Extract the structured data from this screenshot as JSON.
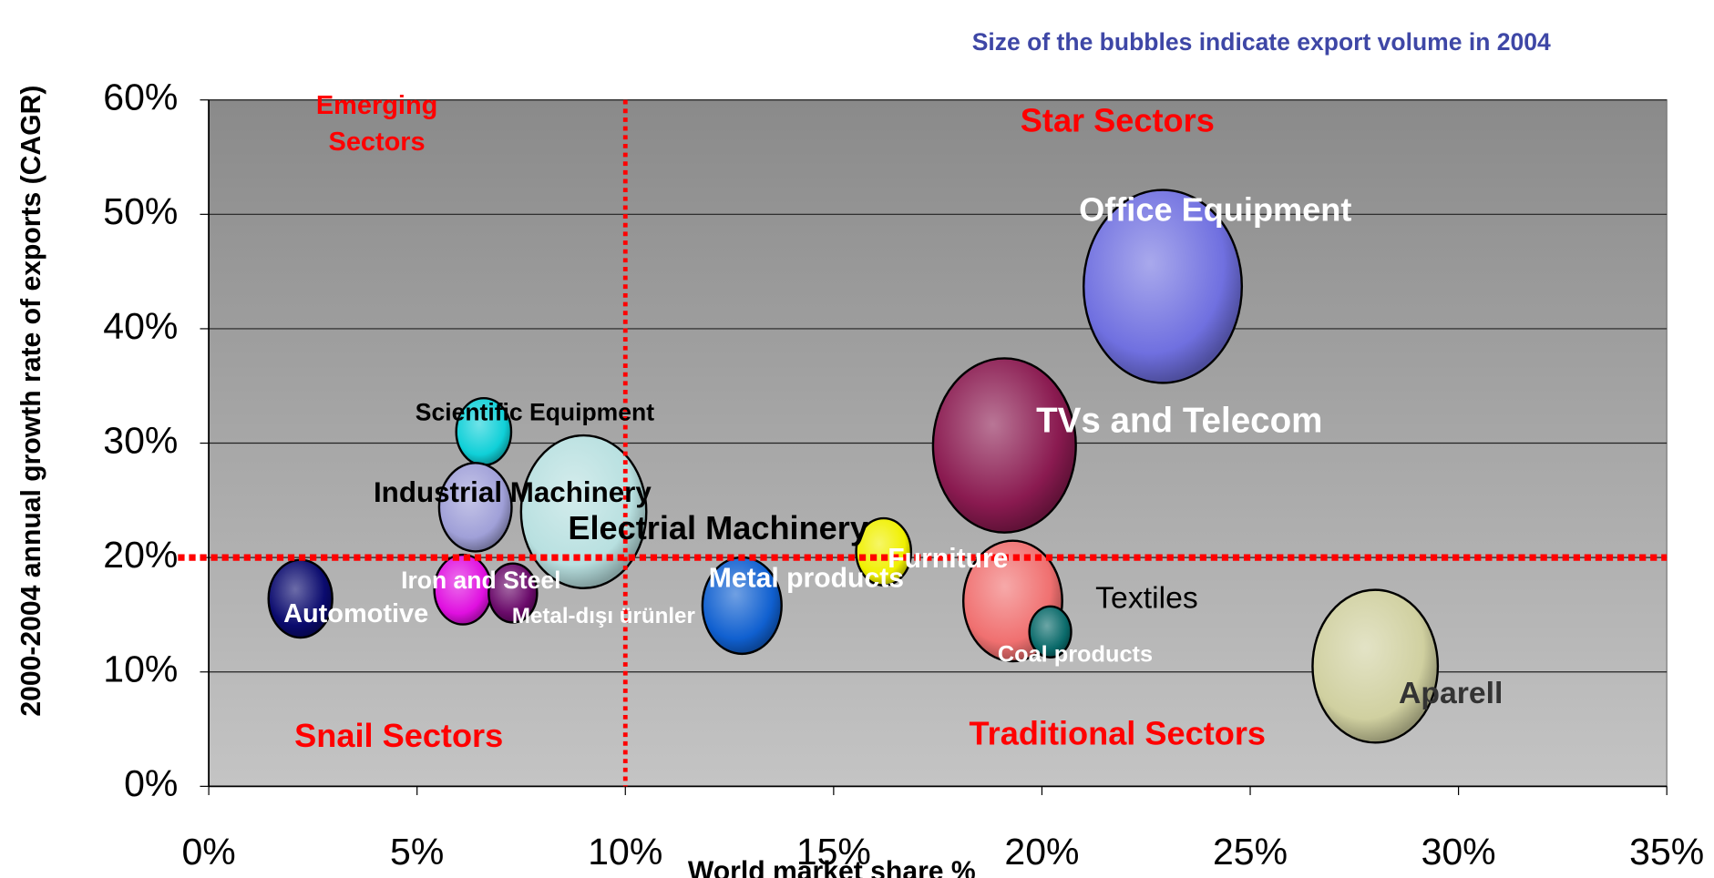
{
  "chart_data": {
    "type": "bubble",
    "subtitle": "Size of the bubbles indicate export volume in 2004",
    "xlabel": "World market share %",
    "ylabel": "2000-2004 annual growth rate of exports (CAGR)",
    "xlim": [
      0,
      35
    ],
    "xticks": [
      {
        "value": 0,
        "label": "0%"
      },
      {
        "value": 5,
        "label": "5%"
      },
      {
        "value": 10,
        "label": "10%"
      },
      {
        "value": 15,
        "label": "15%"
      },
      {
        "value": 20,
        "label": "20%"
      },
      {
        "value": 25,
        "label": "25%"
      },
      {
        "value": 30,
        "label": "30%"
      },
      {
        "value": 35,
        "label": "35%"
      }
    ],
    "ylim": [
      0,
      60
    ],
    "yticks": [
      {
        "value": 0,
        "label": "0%"
      },
      {
        "value": 10,
        "label": "10%"
      },
      {
        "value": 20,
        "label": "20%"
      },
      {
        "value": 30,
        "label": "30%"
      },
      {
        "value": 40,
        "label": "40%"
      },
      {
        "value": 50,
        "label": "50%"
      },
      {
        "value": 60,
        "label": "60%"
      }
    ],
    "grid": true,
    "reference_lines": {
      "x": 10,
      "y": 20,
      "color": "#ff0000"
    },
    "quadrant_labels": [
      "Emerging\nSectors",
      "Star Sectors",
      "Snail Sectors",
      "Traditional Sectors"
    ],
    "labels": [
      "Automotive",
      "Scientific Equipment",
      "Industrial Machinery",
      "Iron and Steel",
      "Metal-dışı ürünler",
      "Electrial Machinery",
      "Metal products",
      "Furniture",
      "TVs and Telecom",
      "Office Equipment",
      "Textiles",
      "Coal products",
      "Aparell"
    ],
    "x": [
      2.2,
      6.6,
      6.4,
      6.1,
      7.3,
      9.0,
      12.8,
      16.2,
      19.1,
      22.9,
      19.3,
      20.2,
      28.0
    ],
    "y": [
      16.4,
      31.0,
      24.4,
      17.2,
      16.9,
      24.0,
      15.8,
      20.5,
      29.8,
      43.7,
      16.2,
      13.5,
      10.5
    ],
    "sizes": [
      29,
      25,
      33,
      26,
      22,
      57,
      36,
      25,
      65,
      72,
      45,
      19,
      57
    ],
    "colors": [
      "#0a0a6e",
      "#10d0d8",
      "#a0a0d8",
      "#e010e0",
      "#6a0a6a",
      "#b8e0e0",
      "#1060d0",
      "#f0f000",
      "#8a1a50",
      "#7070e0",
      "#f07070",
      "#0a6a6a",
      "#d0d0a0"
    ]
  }
}
